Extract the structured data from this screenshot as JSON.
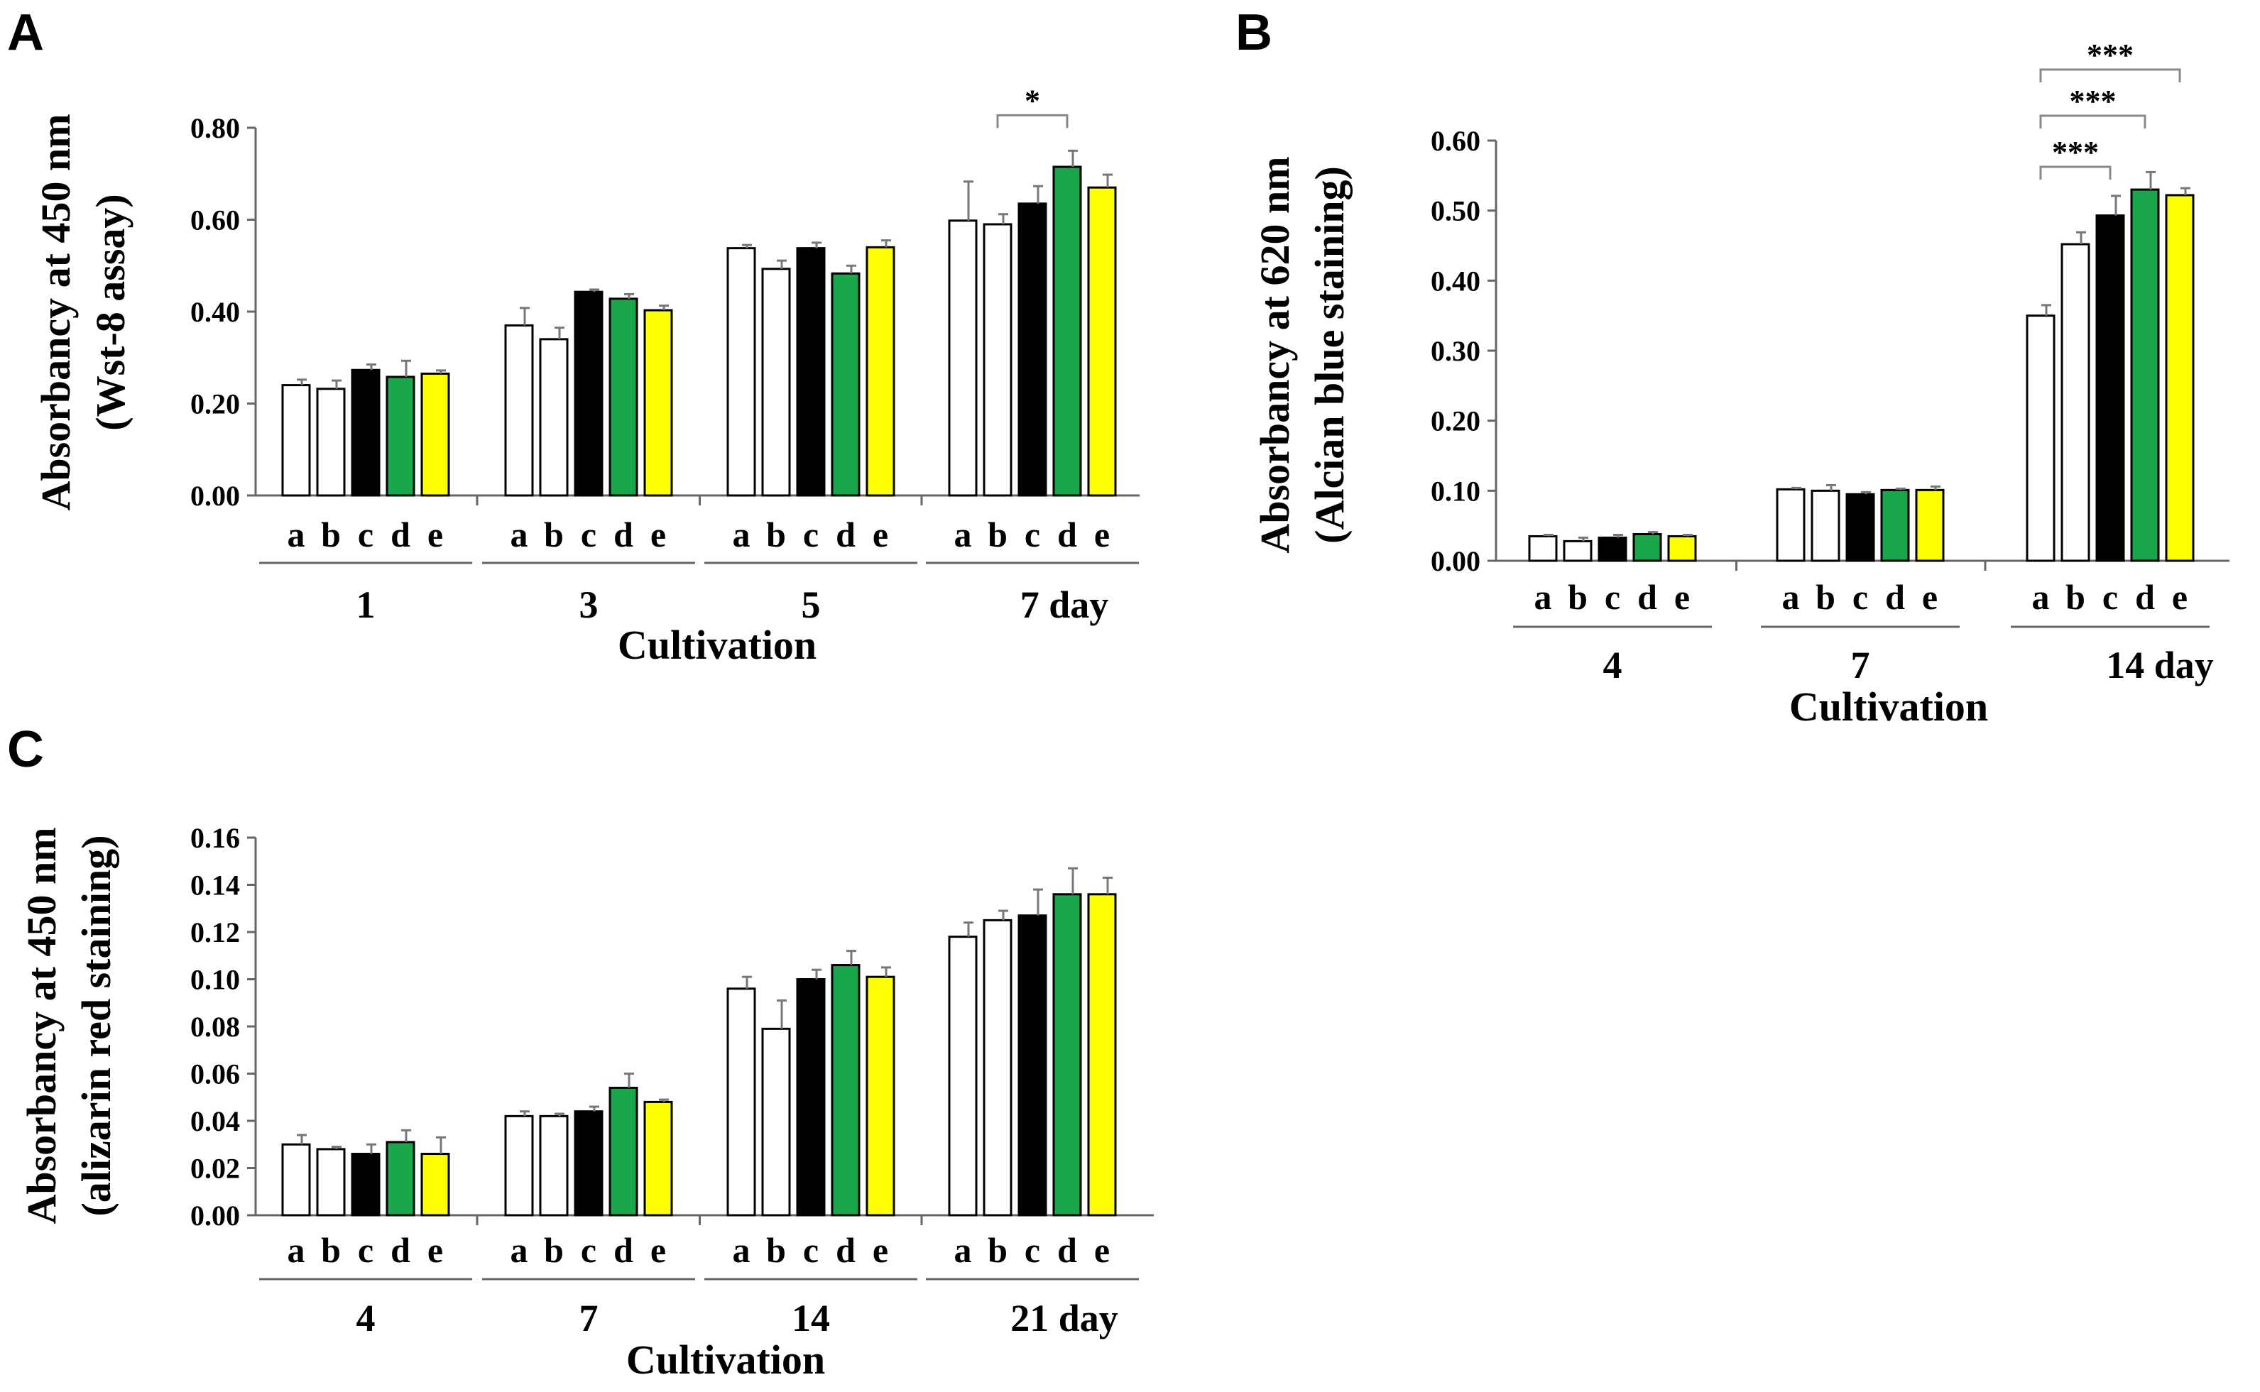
{
  "chart_data": [
    {
      "panel": "A",
      "type": "bar",
      "ylabel_line1": "Absorbancy at 450 nm",
      "ylabel_line2": "(Wst-8 assay)",
      "xlabel": "Cultivation",
      "ylim": [
        0,
        0.8
      ],
      "yticks": [
        "0.00",
        "0.20",
        "0.40",
        "0.60",
        "0.80"
      ],
      "bar_labels": [
        "a",
        "b",
        "c",
        "d",
        "e"
      ],
      "bar_colors": [
        "#ffffff",
        "#ffffff",
        "#000000",
        "#1aa64b",
        "#ffff00"
      ],
      "groups": [
        {
          "label": "1",
          "values": [
            0.24,
            0.232,
            0.273,
            0.258,
            0.265
          ],
          "errors": [
            0.012,
            0.018,
            0.012,
            0.035,
            0.007
          ]
        },
        {
          "label": "3",
          "values": [
            0.37,
            0.34,
            0.443,
            0.428,
            0.403
          ],
          "errors": [
            0.038,
            0.025,
            0.005,
            0.01,
            0.01
          ]
        },
        {
          "label": "5",
          "values": [
            0.538,
            0.493,
            0.538,
            0.483,
            0.54
          ],
          "errors": [
            0.007,
            0.018,
            0.012,
            0.017,
            0.015
          ]
        },
        {
          "label": "7 day",
          "values": [
            0.598,
            0.59,
            0.635,
            0.715,
            0.67
          ],
          "errors": [
            0.085,
            0.022,
            0.038,
            0.035,
            0.028
          ]
        }
      ],
      "significance": [
        {
          "group": 3,
          "from": 1,
          "to": 3,
          "label": "*"
        }
      ]
    },
    {
      "panel": "B",
      "type": "bar",
      "ylabel_line1": "Absorbancy at 620 nm",
      "ylabel_line2": "(Alcian blue staining)",
      "xlabel": "Cultivation",
      "ylim": [
        0,
        0.6
      ],
      "yticks": [
        "0.00",
        "0.10",
        "0.20",
        "0.30",
        "0.40",
        "0.50",
        "0.60"
      ],
      "bar_labels": [
        "a",
        "b",
        "c",
        "d",
        "e"
      ],
      "bar_colors": [
        "#ffffff",
        "#ffffff",
        "#000000",
        "#1aa64b",
        "#ffff00"
      ],
      "groups": [
        {
          "label": "4",
          "values": [
            0.035,
            0.028,
            0.033,
            0.038,
            0.035
          ],
          "errors": [
            0.002,
            0.005,
            0.004,
            0.003,
            0.002
          ]
        },
        {
          "label": "7",
          "values": [
            0.102,
            0.1,
            0.095,
            0.101,
            0.101
          ],
          "errors": [
            0.002,
            0.008,
            0.003,
            0.002,
            0.005
          ]
        },
        {
          "label": "14 day",
          "values": [
            0.35,
            0.452,
            0.493,
            0.53,
            0.522
          ],
          "errors": [
            0.015,
            0.017,
            0.028,
            0.025,
            0.01
          ]
        }
      ],
      "significance": [
        {
          "group": 2,
          "from": 0,
          "to": 2,
          "label": "***"
        },
        {
          "group": 2,
          "from": 0,
          "to": 3,
          "label": "***"
        },
        {
          "group": 2,
          "from": 0,
          "to": 4,
          "label": "***"
        }
      ]
    },
    {
      "panel": "C",
      "type": "bar",
      "ylabel_line1": "Absorbancy at 450 nm",
      "ylabel_line2": "(alizarin red staining)",
      "xlabel": "Cultivation",
      "ylim": [
        0,
        0.16
      ],
      "yticks": [
        "0.00",
        "0.02",
        "0.04",
        "0.06",
        "0.08",
        "0.10",
        "0.12",
        "0.14",
        "0.16"
      ],
      "bar_labels": [
        "a",
        "b",
        "c",
        "d",
        "e"
      ],
      "bar_colors": [
        "#ffffff",
        "#ffffff",
        "#000000",
        "#1aa64b",
        "#ffff00"
      ],
      "groups": [
        {
          "label": "4",
          "values": [
            0.03,
            0.028,
            0.026,
            0.031,
            0.026
          ],
          "errors": [
            0.004,
            0.001,
            0.004,
            0.005,
            0.007
          ]
        },
        {
          "label": "7",
          "values": [
            0.042,
            0.042,
            0.044,
            0.054,
            0.048
          ],
          "errors": [
            0.002,
            0.001,
            0.002,
            0.006,
            0.001
          ]
        },
        {
          "label": "14",
          "values": [
            0.096,
            0.079,
            0.1,
            0.106,
            0.101
          ],
          "errors": [
            0.005,
            0.012,
            0.004,
            0.006,
            0.004
          ]
        },
        {
          "label": "21 day",
          "values": [
            0.118,
            0.125,
            0.127,
            0.136,
            0.136
          ],
          "errors": [
            0.006,
            0.004,
            0.011,
            0.011,
            0.007
          ]
        }
      ],
      "significance": []
    }
  ]
}
